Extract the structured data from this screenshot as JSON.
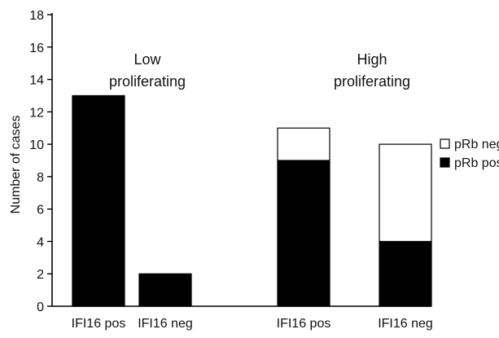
{
  "chart_data": {
    "type": "bar",
    "stacked": true,
    "title": "",
    "xlabel": "",
    "ylabel": "Number of cases",
    "ylim": [
      0,
      18
    ],
    "yticks": [
      0,
      2,
      4,
      6,
      8,
      10,
      12,
      14,
      16,
      18
    ],
    "categories": [
      "IFI16 pos",
      "IFI16 neg",
      "IFI16 pos",
      "IFI16 neg"
    ],
    "groups": [
      {
        "label_lines": [
          "Low",
          "proliferating"
        ],
        "categories": [
          0,
          1
        ]
      },
      {
        "label_lines": [
          "High",
          "proliferating"
        ],
        "categories": [
          2,
          3
        ]
      }
    ],
    "series": [
      {
        "name": "pRb pos",
        "color": "#000000",
        "values": [
          13,
          2,
          9,
          4
        ]
      },
      {
        "name": "pRb neg",
        "color": "#ffffff",
        "values": [
          0,
          0,
          2,
          6
        ]
      }
    ],
    "legend": {
      "placement": "right",
      "entries": [
        "pRb neg",
        "pRb pos"
      ]
    },
    "grid": false
  }
}
